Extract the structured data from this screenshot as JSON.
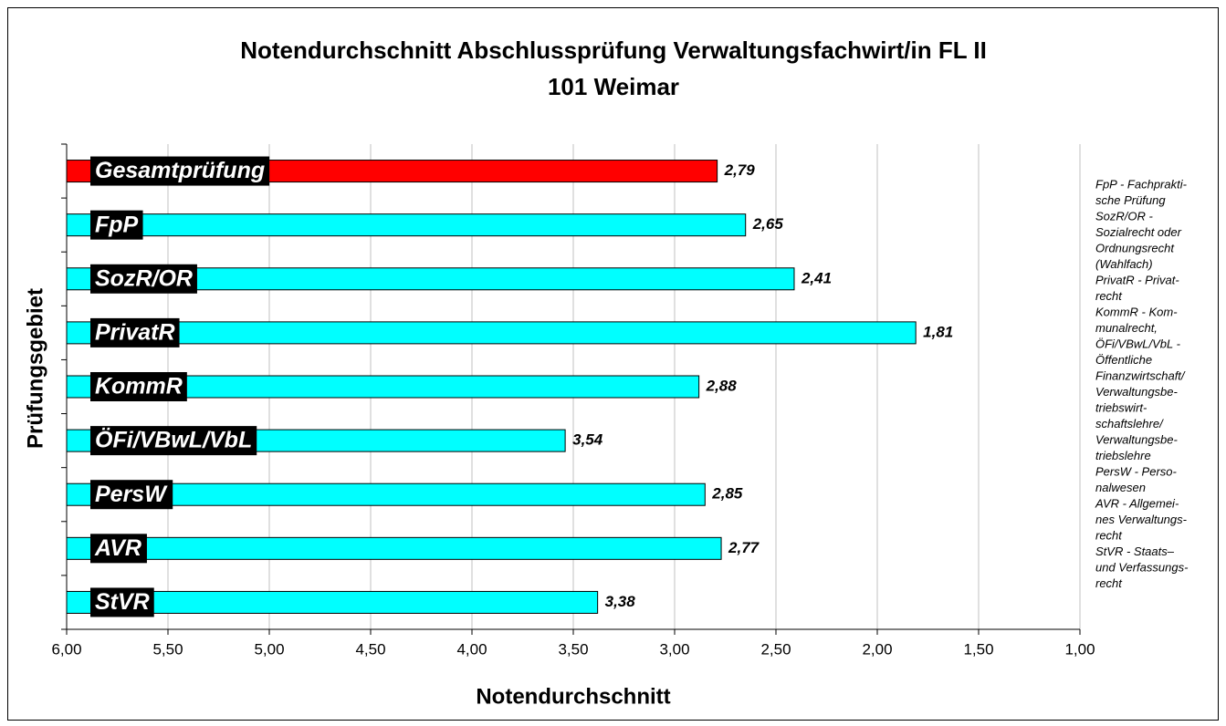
{
  "chart_data": {
    "type": "bar",
    "orientation": "horizontal",
    "title": [
      "Notendurchschnitt Abschlussprüfung Verwaltungsfachwirt/in  FL II",
      "101 Weimar"
    ],
    "x_label": "Notendurchschnitt",
    "y_label": "Prüfungsgebiet",
    "categories": [
      "Gesamtprüfung",
      "FpP",
      "SozR/OR",
      "PrivatR",
      "KommR",
      "ÖFi/VBwL/VbL",
      "PersW",
      "AVR",
      "StVR"
    ],
    "values": [
      2.79,
      2.65,
      2.41,
      1.81,
      2.88,
      3.54,
      2.85,
      2.77,
      3.38
    ],
    "value_labels": [
      "2,79",
      "2,65",
      "2,41",
      "1,81",
      "2,88",
      "3,54",
      "2,85",
      "2,77",
      "3,38"
    ],
    "colors": [
      "#ff0000",
      "#00ffff",
      "#00ffff",
      "#00ffff",
      "#00ffff",
      "#00ffff",
      "#00ffff",
      "#00ffff",
      "#00ffff"
    ],
    "xlim": [
      6,
      1
    ],
    "xticks": [
      {
        "value": 6,
        "label": "6,00"
      },
      {
        "value": 5.5,
        "label": "5,50"
      },
      {
        "value": 5,
        "label": "5,00"
      },
      {
        "value": 4.5,
        "label": "4,50"
      },
      {
        "value": 4,
        "label": "4,00"
      },
      {
        "value": 3.5,
        "label": "3,50"
      },
      {
        "value": 3,
        "label": "3,00"
      },
      {
        "value": 2.5,
        "label": "2,50"
      },
      {
        "value": 2,
        "label": "2,00"
      },
      {
        "value": 1.5,
        "label": "1,50"
      },
      {
        "value": 1,
        "label": "1,00"
      }
    ],
    "grid": true,
    "note": [
      "FpP - Fachprakti-",
      "sche Prüfung",
      "SozR/OR -",
      "Sozialrecht oder",
      "Ordnungsrecht",
      "(Wahlfach)",
      "PrivatR - Privat-",
      "recht",
      "KommR - Kom-",
      "munalrecht,",
      "ÖFi/VBwL/VbL -",
      "Öffentliche",
      "Finanzwirtschaft/",
      "Verwaltungsbe-",
      "triebswirt-",
      "schaftslehre/",
      "Verwaltungsbe-",
      "triebslehre",
      "PersW - Perso-",
      "nalwesen",
      "AVR - Allgemei-",
      "nes Verwaltungs-",
      "recht",
      "StVR - Staats–",
      "und Verfassungs-",
      "recht"
    ]
  }
}
